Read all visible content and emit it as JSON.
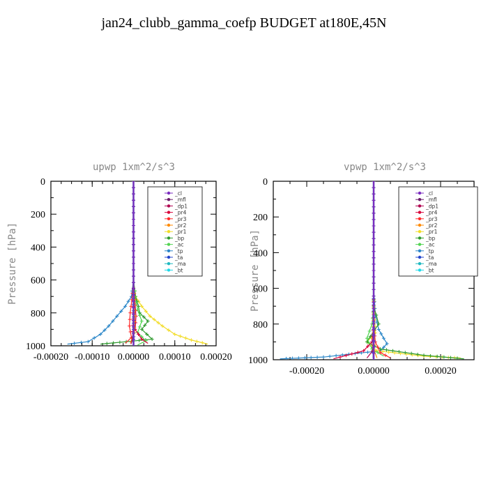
{
  "page_title": "jan24_clubb_gamma_coefp  BUDGET at180E,45N",
  "legend_labels": [
    "_cl",
    "_mfl",
    "_dp1",
    "_pr4",
    "_pr3",
    "_pr2",
    "_pr1",
    "_bp",
    "_ac",
    "_tp",
    "_ta",
    "_ma",
    "_bt"
  ],
  "colors": {
    "_cl": "#7b2cbf",
    "_mfl": "#6a1b6a",
    "_dp1": "#b0004f",
    "_pr4": "#d8003a",
    "_pr3": "#ff2a2a",
    "_pr2": "#ff8a00",
    "_pr1": "#f2dc28",
    "_bp": "#2e9a2e",
    "_ac": "#52d452",
    "_tp": "#2a86c8",
    "_ta": "#2244cc",
    "_ma": "#1fb8c0",
    "_bt": "#1ed8e8"
  },
  "chart_data": [
    {
      "type": "line",
      "title": "upwp  1xm^2/s^3",
      "ylabel": "Pressure [hPa]",
      "xlabel": "",
      "xlim": [
        -0.0002,
        0.0002
      ],
      "ylim": [
        1000,
        0
      ],
      "x_ticks": [
        -0.0002,
        -0.0001,
        0.0,
        0.0001,
        0.0002
      ],
      "x_tick_labels": [
        "-0.00020",
        "-0.00010",
        "0.00000",
        "0.00010",
        "0.00020"
      ],
      "y_ticks": [
        0,
        200,
        400,
        600,
        800,
        1000
      ],
      "y_tick_labels": [
        "0",
        "200",
        "400",
        "600",
        "800",
        "1000"
      ],
      "legend_position": "top-right",
      "series": [
        {
          "name": "_tp",
          "points": [
            [
              0,
              0
            ],
            [
              0,
              300
            ],
            [
              0,
              600
            ],
            [
              -5e-06,
              700
            ],
            [
              -2e-05,
              760
            ],
            [
              -4e-05,
              820
            ],
            [
              -6e-05,
              880
            ],
            [
              -8e-05,
              930
            ],
            [
              -0.00011,
              975
            ],
            [
              -0.00016,
              990
            ]
          ]
        },
        {
          "name": "_pr1",
          "points": [
            [
              0,
              0
            ],
            [
              0,
              300
            ],
            [
              0,
              600
            ],
            [
              5e-06,
              700
            ],
            [
              2e-05,
              760
            ],
            [
              4e-05,
              820
            ],
            [
              7e-05,
              880
            ],
            [
              0.0001,
              930
            ],
            [
              0.00014,
              965
            ],
            [
              0.00018,
              990
            ]
          ]
        },
        {
          "name": "_bp",
          "points": [
            [
              0,
              0
            ],
            [
              0,
              600
            ],
            [
              5e-06,
              700
            ],
            [
              1.2e-05,
              760
            ],
            [
              1.5e-05,
              800
            ],
            [
              3.5e-05,
              850
            ],
            [
              2e-05,
              900
            ],
            [
              4.5e-05,
              960
            ],
            [
              -8e-05,
              990
            ]
          ]
        },
        {
          "name": "_ac",
          "points": [
            [
              0,
              0
            ],
            [
              0,
              600
            ],
            [
              4e-06,
              700
            ],
            [
              1e-05,
              780
            ],
            [
              2e-05,
              850
            ],
            [
              1e-05,
              920
            ],
            [
              3e-05,
              970
            ],
            [
              1e-05,
              995
            ]
          ]
        },
        {
          "name": "_pr3",
          "points": [
            [
              0,
              0
            ],
            [
              0,
              600
            ],
            [
              -4e-06,
              720
            ],
            [
              -8e-06,
              800
            ],
            [
              -1e-05,
              880
            ],
            [
              -5e-06,
              950
            ],
            [
              -2e-05,
              985
            ]
          ]
        },
        {
          "name": "_pr4",
          "points": [
            [
              0,
              0
            ],
            [
              0,
              600
            ],
            [
              3e-06,
              720
            ],
            [
              6e-06,
              820
            ],
            [
              4e-06,
              900
            ],
            [
              2e-05,
              960
            ],
            [
              3.5e-05,
              985
            ]
          ]
        },
        {
          "name": "_pr2",
          "points": [
            [
              0,
              0
            ],
            [
              0,
              600
            ],
            [
              2e-06,
              720
            ],
            [
              3e-06,
              820
            ],
            [
              2e-06,
              920
            ],
            [
              -8e-06,
              985
            ]
          ]
        },
        {
          "name": "_dp1",
          "points": [
            [
              0,
              0
            ],
            [
              0,
              500
            ],
            [
              0,
              800
            ],
            [
              -2e-06,
              950
            ],
            [
              -6e-06,
              990
            ]
          ]
        },
        {
          "name": "_ta",
          "points": [
            [
              0,
              0
            ],
            [
              0,
              600
            ],
            [
              0,
              900
            ],
            [
              1e-06,
              990
            ]
          ]
        },
        {
          "name": "_ma",
          "points": [
            [
              0,
              0
            ],
            [
              0,
              1000
            ]
          ]
        },
        {
          "name": "_bt",
          "points": [
            [
              0,
              0
            ],
            [
              0,
              1000
            ]
          ]
        },
        {
          "name": "_mfl",
          "points": [
            [
              0,
              0
            ],
            [
              0,
              1000
            ]
          ]
        },
        {
          "name": "_cl",
          "points": [
            [
              0,
              0
            ],
            [
              0,
              1000
            ]
          ]
        }
      ]
    },
    {
      "type": "line",
      "title": "vpwp  1xm^2/s^3",
      "ylabel": "Pressure [hPa]",
      "xlabel": "",
      "xlim": [
        -0.0003,
        0.0003
      ],
      "ylim": [
        1000,
        0
      ],
      "x_ticks": [
        -0.0002,
        0.0,
        0.0002
      ],
      "x_tick_labels": [
        "-0.00020",
        "0.00000",
        "0.00020"
      ],
      "y_ticks": [
        0,
        200,
        400,
        600,
        800,
        1000
      ],
      "y_tick_labels": [
        "0",
        "200",
        "400",
        "600",
        "800",
        "1000"
      ],
      "legend_position": "top-right",
      "series": [
        {
          "name": "_tp",
          "points": [
            [
              0,
              0
            ],
            [
              0,
              600
            ],
            [
              5e-06,
              750
            ],
            [
              1.5e-05,
              830
            ],
            [
              3e-05,
              880
            ],
            [
              4e-05,
              910
            ],
            [
              2e-05,
              950
            ],
            [
              -0.00015,
              985
            ],
            [
              -0.00028,
              995
            ]
          ]
        },
        {
          "name": "_pr1",
          "points": [
            [
              0,
              0
            ],
            [
              0,
              700
            ],
            [
              5e-06,
              850
            ],
            [
              -2e-05,
              900
            ],
            [
              1e-05,
              950
            ],
            [
              0.00015,
              980
            ],
            [
              0.00026,
              990
            ]
          ]
        },
        {
          "name": "_bp",
          "points": [
            [
              0,
              0
            ],
            [
              0,
              700
            ],
            [
              8e-06,
              750
            ],
            [
              1.5e-05,
              800
            ],
            [
              -1e-05,
              870
            ],
            [
              -2e-05,
              900
            ],
            [
              2e-05,
              940
            ],
            [
              0.00015,
              975
            ],
            [
              0.00027,
              995
            ]
          ]
        },
        {
          "name": "_ac",
          "points": [
            [
              0,
              0
            ],
            [
              0,
              700
            ],
            [
              -5e-06,
              800
            ],
            [
              -2e-05,
              880
            ],
            [
              -5e-06,
              940
            ],
            [
              3e-05,
              980
            ]
          ]
        },
        {
          "name": "_pr4",
          "points": [
            [
              0,
              0
            ],
            [
              0,
              800
            ],
            [
              -5e-06,
              900
            ],
            [
              -3e-05,
              950
            ],
            [
              -0.0001,
              985
            ],
            [
              -0.00012,
              995
            ]
          ]
        },
        {
          "name": "_pr3",
          "points": [
            [
              0,
              0
            ],
            [
              0,
              800
            ],
            [
              5e-06,
              900
            ],
            [
              2e-05,
              960
            ],
            [
              5e-05,
              990
            ]
          ]
        },
        {
          "name": "_dp1",
          "points": [
            [
              0,
              0
            ],
            [
              0,
              850
            ],
            [
              -3e-06,
              950
            ],
            [
              -2e-05,
              990
            ]
          ]
        },
        {
          "name": "_pr2",
          "points": [
            [
              0,
              0
            ],
            [
              0,
              850
            ],
            [
              2e-06,
              950
            ],
            [
              1e-05,
              990
            ]
          ]
        },
        {
          "name": "_ta",
          "points": [
            [
              0,
              0
            ],
            [
              0,
              900
            ],
            [
              -2e-06,
              990
            ]
          ]
        },
        {
          "name": "_ma",
          "points": [
            [
              0,
              0
            ],
            [
              0,
              1000
            ]
          ]
        },
        {
          "name": "_bt",
          "points": [
            [
              0,
              0
            ],
            [
              0,
              1000
            ]
          ]
        },
        {
          "name": "_mfl",
          "points": [
            [
              0,
              0
            ],
            [
              0,
              1000
            ]
          ]
        },
        {
          "name": "_cl",
          "points": [
            [
              0,
              0
            ],
            [
              0,
              1000
            ]
          ]
        }
      ]
    }
  ]
}
